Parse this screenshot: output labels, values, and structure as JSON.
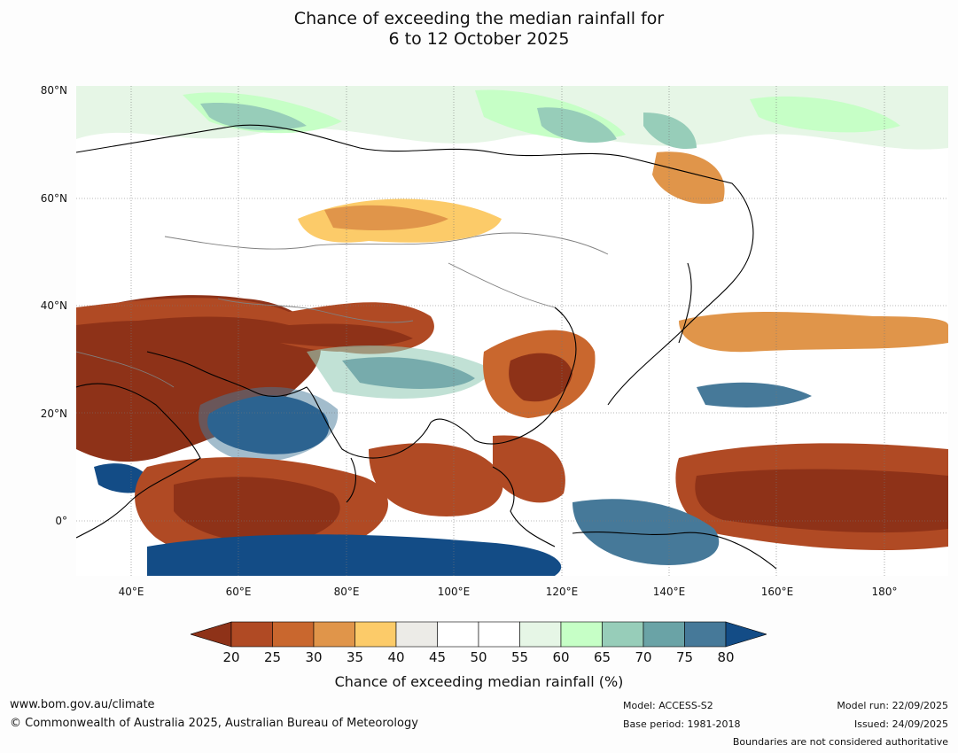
{
  "title_line1": "Chance of exceeding the median rainfall for",
  "title_line2": "6 to 12 October 2025",
  "lat_labels": [
    "80°N",
    "60°N",
    "40°N",
    "20°N",
    "0°"
  ],
  "lon_labels": [
    "40°E",
    "60°E",
    "80°E",
    "100°E",
    "120°E",
    "140°E",
    "160°E",
    "180°"
  ],
  "colorbar": {
    "ticks": [
      "20",
      "25",
      "30",
      "35",
      "40",
      "45",
      "50",
      "55",
      "60",
      "65",
      "70",
      "75",
      "80"
    ],
    "colors": [
      "#8e3218",
      "#b04a24",
      "#c9672e",
      "#e0954a",
      "#fccb69",
      "#ecebe7",
      "#ffffff",
      "#ffffff",
      "#e6f6e6",
      "#c6ffc6",
      "#97cdb9",
      "#6aa3a6",
      "#467999",
      "#134c86"
    ],
    "title": "Chance of exceeding median rainfall (%)"
  },
  "footer": {
    "website": "www.bom.gov.au/climate",
    "copyright": "© Commonwealth of Australia 2025, Australian Bureau of Meteorology",
    "model": "Model: ACCESS-S2",
    "base_period": "Base period: 1981-2018",
    "model_run": "Model run: 22/09/2025",
    "issued": "Issued: 24/09/2025",
    "disclaimer": "Boundaries are not considered authoritative"
  }
}
